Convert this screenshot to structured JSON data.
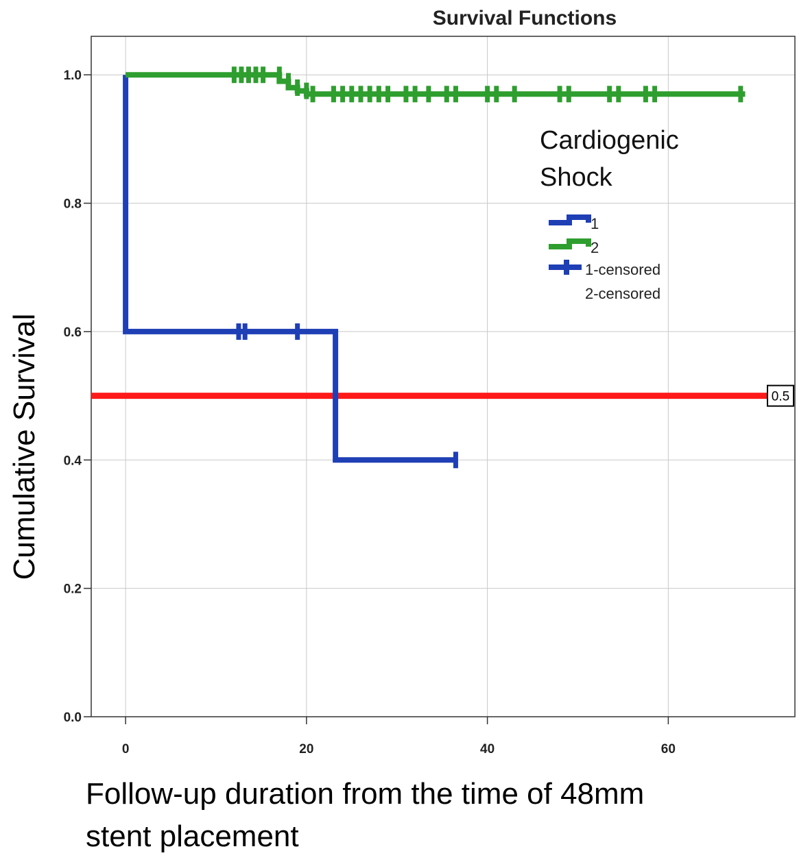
{
  "chart_data": {
    "type": "line",
    "subtype": "kaplan-meier-step",
    "title": "Survival Functions",
    "ylabel": "Cumulative Survival",
    "xlabel_lines": [
      "Follow-up duration from the time of 48mm",
      "stent placement"
    ],
    "xlim": [
      -3.8,
      74
    ],
    "ylim": [
      0,
      1.06
    ],
    "xticks": [
      0,
      20,
      40,
      60
    ],
    "yticks": [
      0.0,
      0.2,
      0.4,
      0.6,
      0.8,
      1.0
    ],
    "ytick_labels": [
      "0.0",
      "0.2",
      "0.4",
      "0.6",
      "0.8",
      "1.0"
    ],
    "grid": true,
    "legend": {
      "title_lines": [
        "Cardiogenic",
        "Shock"
      ],
      "placement": "top-right",
      "items": [
        "1",
        "2",
        "1-censored",
        "2-censored"
      ]
    },
    "series": [
      {
        "name": "1",
        "color": "#1f3fb5",
        "step_x": [
          0,
          0,
          23.2,
          23.2,
          36.5
        ],
        "step_y": [
          1.0,
          0.6,
          0.6,
          0.4,
          0.4
        ],
        "censored": [
          {
            "x": 12.5,
            "y": 0.6
          },
          {
            "x": 13.2,
            "y": 0.6
          },
          {
            "x": 19.0,
            "y": 0.6
          },
          {
            "x": 36.5,
            "y": 0.4
          }
        ]
      },
      {
        "name": "2",
        "color": "#2e9e2e",
        "step_x": [
          0,
          17.0,
          17.0,
          18.0,
          18.0,
          19.0,
          19.0,
          20.0,
          20.0,
          68.5
        ],
        "step_y": [
          1.0,
          1.0,
          0.99,
          0.99,
          0.98,
          0.98,
          0.975,
          0.975,
          0.97,
          0.97
        ],
        "censored": [
          {
            "x": 12.0,
            "y": 1.0
          },
          {
            "x": 12.8,
            "y": 1.0
          },
          {
            "x": 13.6,
            "y": 1.0
          },
          {
            "x": 14.4,
            "y": 1.0
          },
          {
            "x": 15.2,
            "y": 1.0
          },
          {
            "x": 17.0,
            "y": 1.0
          },
          {
            "x": 18.0,
            "y": 0.99
          },
          {
            "x": 19.0,
            "y": 0.98
          },
          {
            "x": 20.0,
            "y": 0.975
          },
          {
            "x": 20.7,
            "y": 0.97
          },
          {
            "x": 23.0,
            "y": 0.97
          },
          {
            "x": 24.0,
            "y": 0.97
          },
          {
            "x": 25.0,
            "y": 0.97
          },
          {
            "x": 26.0,
            "y": 0.97
          },
          {
            "x": 27.0,
            "y": 0.97
          },
          {
            "x": 28.0,
            "y": 0.97
          },
          {
            "x": 29.0,
            "y": 0.97
          },
          {
            "x": 31.0,
            "y": 0.97
          },
          {
            "x": 32.0,
            "y": 0.97
          },
          {
            "x": 33.5,
            "y": 0.97
          },
          {
            "x": 35.5,
            "y": 0.97
          },
          {
            "x": 36.5,
            "y": 0.97
          },
          {
            "x": 40.0,
            "y": 0.97
          },
          {
            "x": 41.0,
            "y": 0.97
          },
          {
            "x": 43.0,
            "y": 0.97
          },
          {
            "x": 48.0,
            "y": 0.97
          },
          {
            "x": 49.0,
            "y": 0.97
          },
          {
            "x": 53.5,
            "y": 0.97
          },
          {
            "x": 54.5,
            "y": 0.97
          },
          {
            "x": 57.5,
            "y": 0.97
          },
          {
            "x": 58.5,
            "y": 0.97
          },
          {
            "x": 68.0,
            "y": 0.97
          }
        ]
      }
    ],
    "reference_line": {
      "y": 0.5,
      "color": "#ff1a1a",
      "label": "0.5"
    }
  }
}
